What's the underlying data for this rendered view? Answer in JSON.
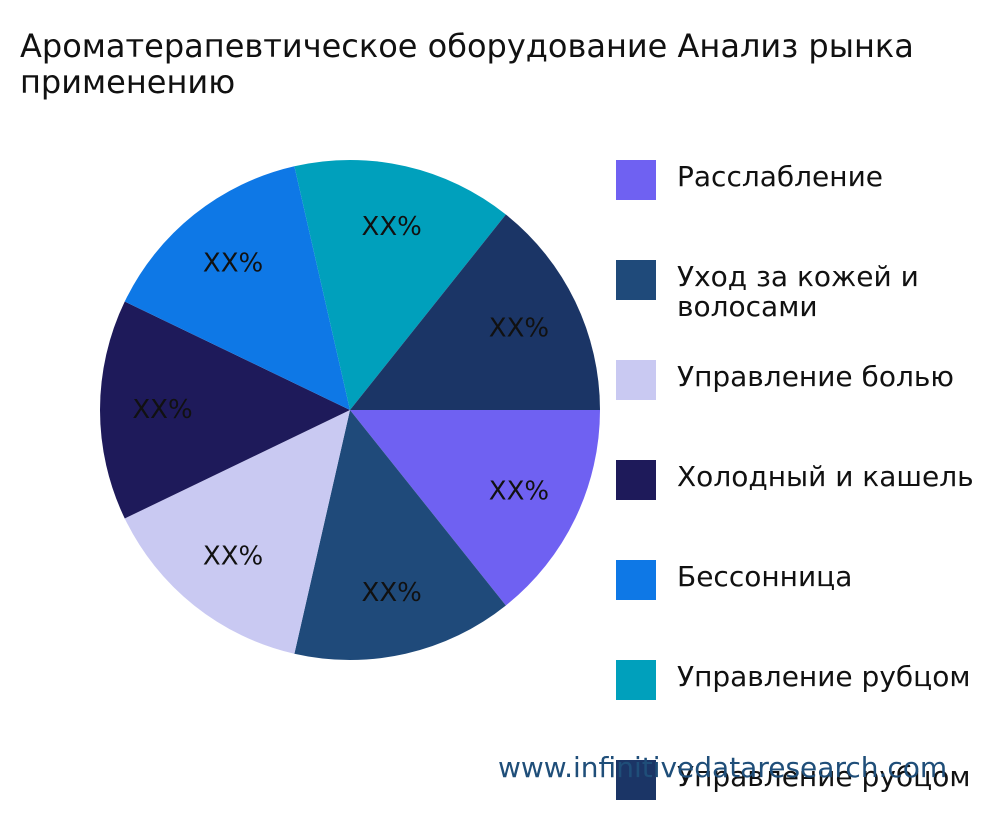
{
  "chart_data": {
    "type": "pie",
    "title": "Ароматерапевтическое оборудование Анализ рынка применению",
    "data_label": "XX%",
    "legend_position": "right",
    "slices": [
      {
        "name": "Расслабление",
        "value": 14.2857,
        "color": "#6f61f2"
      },
      {
        "name": "Уход за кожей и волосами",
        "value": 14.2857,
        "color": "#1f4a7a"
      },
      {
        "name": "Управление болью",
        "value": 14.2857,
        "color": "#c9c9f2"
      },
      {
        "name": "Холодный и кашель",
        "value": 14.2857,
        "color": "#1e1a5a"
      },
      {
        "name": "Бессонница",
        "value": 14.2857,
        "color": "#0e78e6"
      },
      {
        "name": "Управление рубцом",
        "value": 14.2857,
        "color": "#00a0bc"
      },
      {
        "name": "Управление рубцом",
        "value": 14.2857,
        "color": "#1b3566"
      }
    ]
  },
  "watermark": "www.infinitivedataresearch.com"
}
